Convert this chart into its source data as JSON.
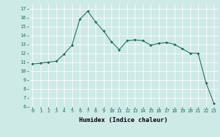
{
  "x": [
    0,
    1,
    2,
    3,
    4,
    5,
    6,
    7,
    8,
    9,
    10,
    11,
    12,
    13,
    14,
    15,
    16,
    17,
    18,
    19,
    20,
    21,
    22,
    23
  ],
  "y": [
    10.8,
    10.9,
    11.0,
    11.1,
    11.9,
    12.9,
    15.8,
    16.7,
    15.5,
    14.5,
    13.3,
    12.4,
    13.4,
    13.5,
    13.4,
    12.9,
    13.1,
    13.2,
    13.0,
    12.5,
    12.0,
    12.0,
    8.7,
    6.4
  ],
  "xlim": [
    -0.5,
    23.5
  ],
  "ylim": [
    6,
    17.5
  ],
  "yticks": [
    6,
    7,
    8,
    9,
    10,
    11,
    12,
    13,
    14,
    15,
    16,
    17
  ],
  "xticks": [
    0,
    1,
    2,
    3,
    4,
    5,
    6,
    7,
    8,
    9,
    10,
    11,
    12,
    13,
    14,
    15,
    16,
    17,
    18,
    19,
    20,
    21,
    22,
    23
  ],
  "xlabel": "Humidex (Indice chaleur)",
  "line_color": "#1a6b5a",
  "marker": "D",
  "marker_size": 1.8,
  "bg_color": "#ceeae6",
  "grid_color": "#ffffff",
  "tick_fontsize": 5.0,
  "xlabel_fontsize": 6.5,
  "linewidth": 0.8
}
